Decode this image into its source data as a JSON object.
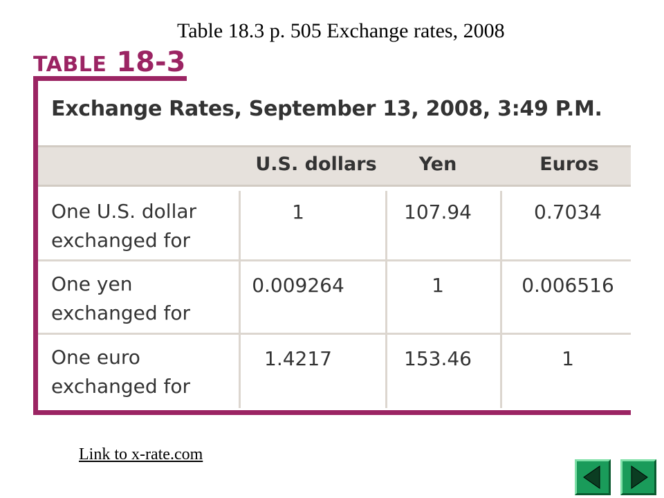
{
  "slide_title": "Table 18.3 p. 505 Exchange rates, 2008",
  "table_label": {
    "word": "TABLE",
    "number": "18-3"
  },
  "table_subtitle": "Exchange Rates, September 13, 2008, 3:49 P.M.",
  "columns": [
    "U.S. dollars",
    "Yen",
    "Euros"
  ],
  "rows": [
    {
      "label_line1": "One U.S. dollar",
      "label_line2": "exchanged for",
      "values": [
        "1",
        "107.94",
        "0.7034"
      ]
    },
    {
      "label_line1": "One yen",
      "label_line2": "exchanged for",
      "values": [
        "0.009264",
        "1",
        "0.006516"
      ]
    },
    {
      "label_line1": "One euro",
      "label_line2": "exchanged for",
      "values": [
        "1.4217",
        "153.46",
        "1"
      ]
    }
  ],
  "link_text": "Link to x-rate.com",
  "nav": {
    "prev": "previous-slide",
    "next": "next-slide"
  },
  "colors": {
    "accent": "#9b2463",
    "header_bg": "#e6e1dc",
    "nav_button": "#1a9b5a"
  }
}
